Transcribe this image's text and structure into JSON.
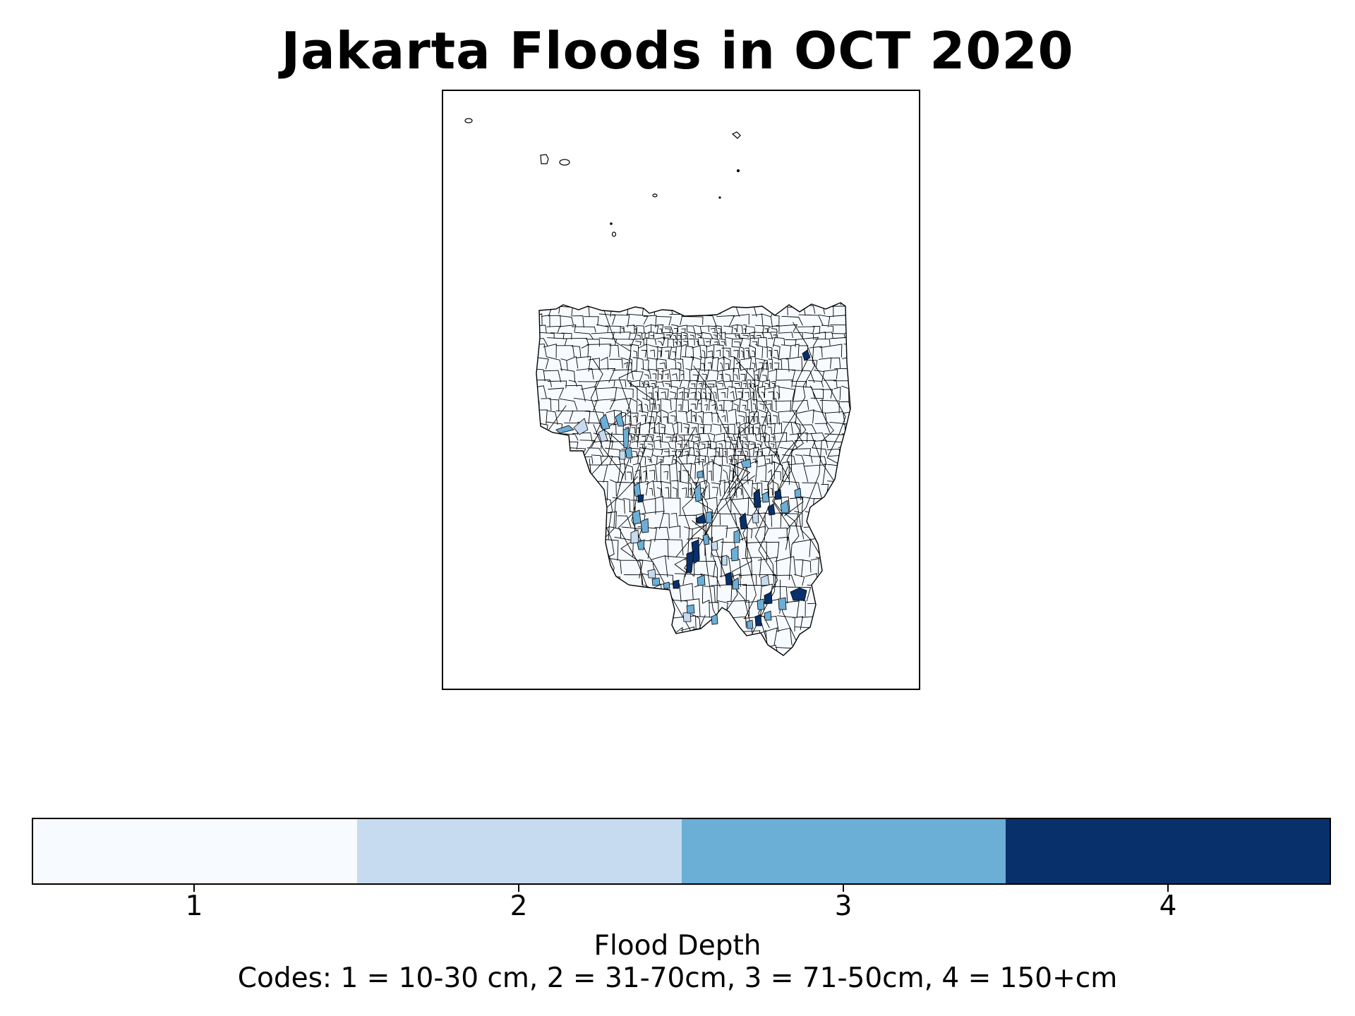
{
  "title": "Jakarta Floods in OCT 2020",
  "colorbar": {
    "label": "Flood Depth",
    "codes_note": "Codes: 1 = 10-30 cm, 2 = 31-70cm, 3 = 71-50cm, 4 = 150+cm",
    "classes": [
      {
        "value": "1",
        "color": "#f7fbff"
      },
      {
        "value": "2",
        "color": "#c6dbef"
      },
      {
        "value": "3",
        "color": "#6baed6"
      },
      {
        "value": "4",
        "color": "#08306b"
      }
    ]
  },
  "map_style": {
    "boundary_color": "#000000",
    "background_fill": "#f7fbff"
  }
}
